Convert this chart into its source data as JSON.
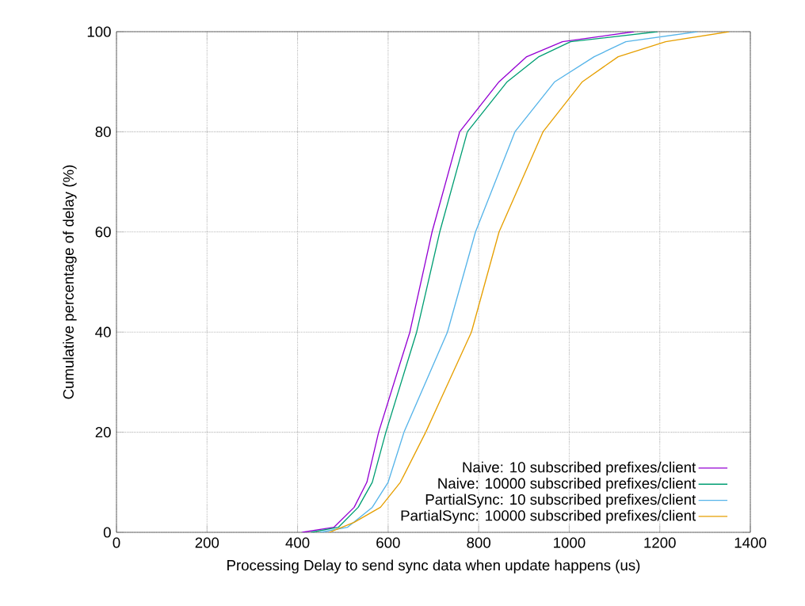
{
  "chart_data": {
    "type": "line",
    "xlabel": "Processing Delay to send sync data when update happens (us)",
    "ylabel": "Cumulative percentage of delay (%)",
    "xlim": [
      0,
      1400
    ],
    "ylim": [
      0,
      100
    ],
    "xticks": [
      0,
      200,
      400,
      600,
      800,
      1000,
      1200,
      1400
    ],
    "yticks": [
      0,
      20,
      40,
      60,
      80,
      100
    ],
    "grid": true,
    "legend": "bottom right",
    "line_style": "solid",
    "marker": "none",
    "series": [
      {
        "name": "Naive: 10 subscribed prefixes/client",
        "color": "#9400d3",
        "x": [
          410,
          480,
          525,
          553,
          579,
          648,
          697,
          758,
          845,
          906,
          985,
          1143
        ],
        "values": [
          0,
          1,
          5,
          10,
          20,
          40,
          60,
          80,
          90,
          95,
          98,
          100
        ]
      },
      {
        "name": "Naive: 10000 subscribed prefixes/client",
        "color": "#009e73",
        "x": [
          430,
          490,
          534,
          565,
          595,
          663,
          714,
          775,
          863,
          933,
          1003,
          1195
        ],
        "values": [
          0,
          1,
          5,
          10,
          20,
          40,
          60,
          80,
          90,
          95,
          98,
          100
        ]
      },
      {
        "name": "PartialSync: 10 subscribed prefixes/client",
        "color": "#56b4e9",
        "x": [
          450,
          510,
          565,
          600,
          635,
          731,
          793,
          880,
          968,
          1055,
          1125,
          1283
        ],
        "values": [
          0,
          1,
          5,
          10,
          20,
          40,
          60,
          80,
          90,
          95,
          98,
          100
        ]
      },
      {
        "name": "PartialSync: 10000 subscribed prefixes/client",
        "color": "#e69f00",
        "x": [
          470,
          525,
          583,
          627,
          683,
          784,
          845,
          942,
          1029,
          1108,
          1213,
          1353
        ],
        "values": [
          0,
          2,
          5,
          10,
          20,
          40,
          60,
          80,
          90,
          95,
          98,
          100
        ]
      }
    ]
  }
}
